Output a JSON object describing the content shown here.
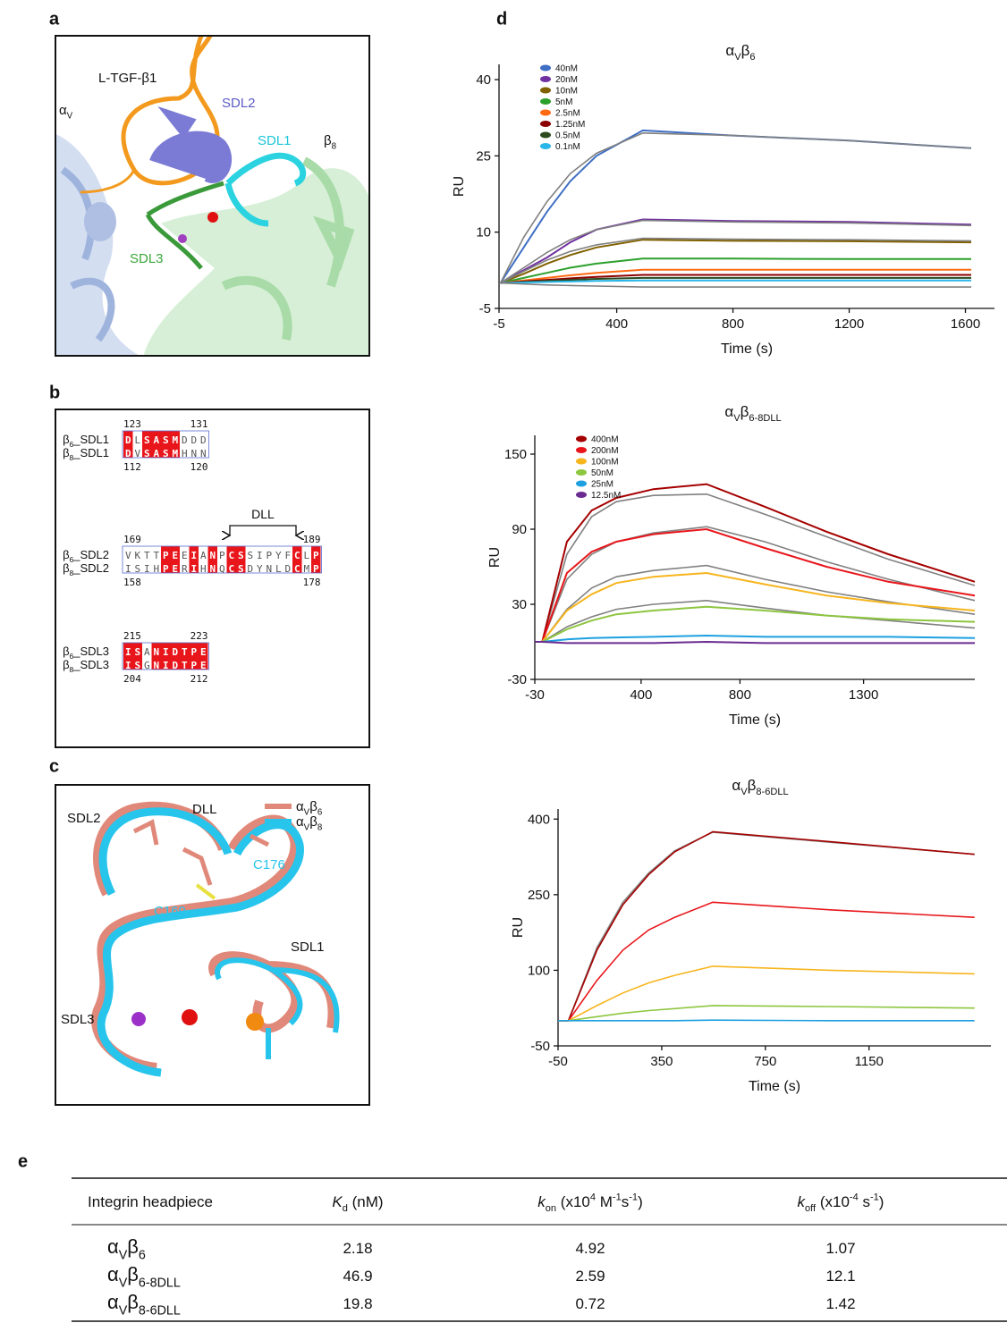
{
  "panel_labels": [
    "a",
    "b",
    "c",
    "d",
    "e"
  ],
  "panel_a": {
    "labels": [
      {
        "parts": [
          {
            "text": "L-TGF-β1"
          }
        ],
        "color": "#111111"
      },
      {
        "parts": [
          {
            "text": "α"
          },
          {
            "text": "V",
            "style": "sub"
          }
        ],
        "color": "#111111"
      },
      {
        "parts": [
          {
            "text": "SDL2"
          }
        ],
        "color": "#5b5bc8"
      },
      {
        "parts": [
          {
            "text": "SDL1"
          }
        ],
        "color": "#1cc6d8"
      },
      {
        "parts": [
          {
            "text": "β"
          },
          {
            "text": "8",
            "style": "sub"
          }
        ],
        "color": "#111111"
      },
      {
        "parts": [
          {
            "text": "SDL3"
          }
        ],
        "color": "#3aa83a"
      }
    ]
  },
  "panel_b": {
    "dll": "DLL",
    "groups": [
      {
        "rows": [
          {
            "name": [
              {
                "text": "β"
              },
              {
                "text": "6",
                "style": "sub"
              },
              {
                "text": "_SDL1"
              }
            ],
            "seq": "DLSASMDDD",
            "start": 123,
            "end": 131
          },
          {
            "name": [
              {
                "text": "β"
              },
              {
                "text": "8",
                "style": "sub"
              },
              {
                "text": "_SDL1"
              }
            ],
            "seq": "DVSASMHNN",
            "start": 112,
            "end": 120
          }
        ]
      },
      {
        "rows": [
          {
            "name": [
              {
                "text": "β"
              },
              {
                "text": "6",
                "style": "sub"
              },
              {
                "text": "_SDL2"
              }
            ],
            "seq": "VKTTPEEIANPCSSIPYFCLP",
            "start": 169,
            "end": 189
          },
          {
            "name": [
              {
                "text": "β"
              },
              {
                "text": "8",
                "style": "sub"
              },
              {
                "text": "_SDL2"
              }
            ],
            "seq": "ISIHPERIHNQCSDYNLDCMP",
            "start": 158,
            "end": 178
          }
        ]
      },
      {
        "rows": [
          {
            "name": [
              {
                "text": "β"
              },
              {
                "text": "6",
                "style": "sub"
              },
              {
                "text": "_SDL3"
              }
            ],
            "seq": "ISANIDTPE",
            "start": 215,
            "end": 223
          },
          {
            "name": [
              {
                "text": "β"
              },
              {
                "text": "8",
                "style": "sub"
              },
              {
                "text": "_SDL3"
              }
            ],
            "seq": "ISGNIDTPE",
            "start": 204,
            "end": 212
          }
        ]
      }
    ]
  },
  "panel_c": {
    "legend": [
      {
        "parts": [
          {
            "text": "α"
          },
          {
            "text": "V",
            "style": "sub"
          },
          {
            "text": "β"
          },
          {
            "text": "6",
            "style": "sub"
          }
        ],
        "color": "#e0897a"
      },
      {
        "parts": [
          {
            "text": "α"
          },
          {
            "text": "V",
            "style": "sub"
          },
          {
            "text": "β"
          },
          {
            "text": "8",
            "style": "sub"
          }
        ],
        "color": "#27c4ec"
      }
    ],
    "labels": [
      {
        "parts": [
          {
            "text": "DLL"
          }
        ],
        "color": "#111111"
      },
      {
        "parts": [
          {
            "text": "SDL2"
          }
        ],
        "color": "#111111"
      },
      {
        "parts": [
          {
            "text": "C169"
          }
        ],
        "color": "#27c4ec"
      },
      {
        "parts": [
          {
            "text": "C176"
          }
        ],
        "color": "#27c4ec"
      },
      {
        "parts": [
          {
            "text": "SDL1"
          }
        ],
        "color": "#111111"
      },
      {
        "parts": [
          {
            "text": "SDL3"
          }
        ],
        "color": "#111111"
      }
    ]
  },
  "chart_data": [
    {
      "type": "line",
      "title": [
        {
          "text": "α"
        },
        {
          "text": "V",
          "style": "sub"
        },
        {
          "text": "β"
        },
        {
          "text": "6",
          "style": "sub"
        }
      ],
      "x_label": "Time (s)",
      "y_label": "RU",
      "xlim": [
        -5,
        1700
      ],
      "xticks": [
        -5,
        400,
        800,
        1200,
        1600
      ],
      "ylim": [
        -5,
        43
      ],
      "yticks": [
        -5,
        10,
        25,
        40
      ],
      "x": [
        0,
        80,
        160,
        240,
        330,
        490,
        800,
        1200,
        1620
      ],
      "series": [
        {
          "name": "40nM",
          "color": "#3f6fc4",
          "values": [
            0,
            7,
            14,
            20,
            25,
            30,
            29,
            28,
            26.5
          ]
        },
        {
          "name": "20nM",
          "color": "#7030a0",
          "values": [
            0,
            2.5,
            5,
            8,
            10.5,
            12.5,
            12.2,
            12,
            11.5
          ]
        },
        {
          "name": "10nM",
          "color": "#806000",
          "values": [
            0,
            1.8,
            3.8,
            5.5,
            7,
            8.5,
            8.3,
            8.2,
            8
          ]
        },
        {
          "name": "5nM",
          "color": "#2ca02c",
          "values": [
            0,
            1,
            2,
            3,
            3.8,
            4.8,
            4.8,
            4.7,
            4.7
          ]
        },
        {
          "name": "2.5nM",
          "color": "#ff6a13",
          "values": [
            0,
            0.5,
            1,
            1.5,
            2,
            2.6,
            2.6,
            2.6,
            2.6
          ]
        },
        {
          "name": "1.25nM",
          "color": "#8b0000",
          "values": [
            0,
            0.3,
            0.6,
            0.9,
            1.2,
            1.6,
            1.6,
            1.6,
            1.6
          ]
        },
        {
          "name": "0.5nM",
          "color": "#2d4a1e",
          "values": [
            0,
            0.2,
            0.4,
            0.6,
            0.8,
            1,
            1,
            1,
            1
          ]
        },
        {
          "name": "0.1nM",
          "color": "#29b6e8",
          "values": [
            0,
            0.1,
            0.2,
            0.3,
            0.4,
            0.5,
            0.5,
            0.5,
            0.5
          ]
        },
        {
          "color": "#808080",
          "values": [
            0,
            9,
            16,
            21.5,
            25.5,
            29.5,
            29,
            28,
            26.5
          ]
        },
        {
          "color": "#808080",
          "values": [
            0,
            3,
            6,
            8.5,
            10.5,
            12.3,
            12,
            11.8,
            11.3
          ]
        },
        {
          "color": "#808080",
          "values": [
            0,
            2.3,
            4.5,
            6.2,
            7.5,
            8.8,
            8.6,
            8.5,
            8.3
          ]
        },
        {
          "color": "#808080",
          "values": [
            0,
            -0.2,
            -0.4,
            -0.5,
            -0.6,
            -0.8,
            -0.8,
            -0.8,
            -0.8
          ]
        }
      ]
    },
    {
      "type": "line",
      "title": [
        {
          "text": "α"
        },
        {
          "text": "V",
          "style": "sub"
        },
        {
          "text": "β"
        },
        {
          "text": "6-8DLL",
          "style": "sub"
        }
      ],
      "x_label": "Time (s)",
      "y_label": "RU",
      "xlim": [
        -30,
        1750
      ],
      "xticks": [
        -30,
        400,
        800,
        1300
      ],
      "ylim": [
        -30,
        165
      ],
      "yticks": [
        -30,
        30,
        90,
        150
      ],
      "x": [
        -30,
        0,
        100,
        200,
        300,
        450,
        665,
        900,
        1150,
        1400,
        1750
      ],
      "series": [
        {
          "color": "#808080",
          "values": [
            0,
            0,
            70,
            100,
            112,
            117,
            118,
            102,
            84,
            66,
            45
          ]
        },
        {
          "color": "#808080",
          "values": [
            0,
            0,
            50,
            70,
            80,
            87,
            92,
            80,
            64,
            50,
            33
          ]
        },
        {
          "color": "#808080",
          "values": [
            0,
            0,
            26,
            43,
            52,
            57,
            61,
            50,
            40,
            32,
            22
          ]
        },
        {
          "color": "#808080",
          "values": [
            0,
            0,
            12,
            20,
            26,
            30,
            33,
            27,
            21,
            17,
            11
          ]
        },
        {
          "name": "400nM",
          "color": "#a50000",
          "values": [
            0,
            0,
            80,
            105,
            115,
            122,
            126,
            108,
            88,
            70,
            48
          ]
        },
        {
          "name": "200nM",
          "color": "#e8161b",
          "values": [
            0,
            0,
            55,
            72,
            80,
            86,
            90,
            75,
            60,
            48,
            37
          ]
        },
        {
          "name": "100nM",
          "color": "#f7b51e",
          "values": [
            0,
            0,
            25,
            38,
            47,
            52,
            55,
            46,
            37,
            31,
            25
          ]
        },
        {
          "name": "50nM",
          "color": "#8dc63f",
          "values": [
            0,
            0,
            10,
            17,
            22,
            25,
            28,
            25,
            21,
            18,
            16
          ]
        },
        {
          "name": "25nM",
          "color": "#1ea0e0",
          "values": [
            0,
            0,
            2,
            3,
            3.5,
            4,
            5,
            4,
            4,
            4,
            3
          ]
        },
        {
          "name": "12.5nM",
          "color": "#6a2c91",
          "values": [
            0,
            0,
            -1,
            -1,
            -1,
            -1,
            0,
            -1,
            -1,
            -1,
            -1
          ]
        }
      ]
    },
    {
      "type": "line",
      "title": [
        {
          "text": "α"
        },
        {
          "text": "V",
          "style": "sub"
        },
        {
          "text": "β"
        },
        {
          "text": "8-6DLL",
          "style": "sub"
        }
      ],
      "x_label": "Time (s)",
      "y_label": "RU",
      "xlim": [
        -50,
        1620
      ],
      "xticks": [
        -50,
        350,
        750,
        1150
      ],
      "ylim": [
        -50,
        420
      ],
      "yticks": [
        -50,
        100,
        250,
        400
      ],
      "x": [
        -50,
        -10,
        100,
        200,
        300,
        400,
        547,
        1000,
        1557
      ],
      "series": [
        {
          "color": "#808080",
          "values": [
            0,
            0,
            145,
            235,
            293,
            337,
            374,
            354,
            330
          ]
        },
        {
          "color": "#a50000",
          "values": [
            0,
            0,
            140,
            230,
            290,
            335,
            375,
            355,
            330
          ]
        },
        {
          "color": "#e8161b",
          "values": [
            0,
            0,
            80,
            140,
            180,
            205,
            235,
            220,
            205
          ]
        },
        {
          "color": "#f7b51e",
          "values": [
            0,
            0,
            30,
            55,
            75,
            90,
            108,
            100,
            93
          ]
        },
        {
          "color": "#8dc63f",
          "values": [
            0,
            0,
            8,
            15,
            20,
            24,
            30,
            28,
            25
          ]
        },
        {
          "color": "#1ea0e0",
          "values": [
            0,
            0,
            0,
            0,
            0,
            0,
            1,
            0,
            0
          ]
        }
      ]
    }
  ],
  "table": {
    "header": [
      [
        {
          "text": "Integrin headpiece"
        }
      ],
      [
        {
          "text": "K",
          "style": "i"
        },
        {
          "text": "d",
          "style": "sub"
        },
        {
          "text": " (nM)"
        }
      ],
      [
        {
          "text": "k",
          "style": "i"
        },
        {
          "text": "on",
          "style": "sub"
        },
        {
          "text": " (x10"
        },
        {
          "text": "4",
          "style": "sup"
        },
        {
          "text": " M"
        },
        {
          "text": "-1",
          "style": "sup"
        },
        {
          "text": "s"
        },
        {
          "text": "-1",
          "style": "sup"
        },
        {
          "text": ")"
        }
      ],
      [
        {
          "text": "k",
          "style": "i"
        },
        {
          "text": "off",
          "style": "sub"
        },
        {
          "text": " (x10"
        },
        {
          "text": "-4",
          "style": "sup"
        },
        {
          "text": " s"
        },
        {
          "text": "-1",
          "style": "sup"
        },
        {
          "text": ")"
        }
      ]
    ],
    "rows": [
      [
        [
          {
            "text": "α"
          },
          {
            "text": "V",
            "style": "sub"
          },
          {
            "text": "β"
          },
          {
            "text": "6",
            "style": "sub"
          }
        ],
        2.18,
        4.92,
        1.07
      ],
      [
        [
          {
            "text": "α"
          },
          {
            "text": "V",
            "style": "sub"
          },
          {
            "text": "β"
          },
          {
            "text": "6-8DLL",
            "style": "sub"
          }
        ],
        46.9,
        2.59,
        12.1
      ],
      [
        [
          {
            "text": "α"
          },
          {
            "text": "V",
            "style": "sub"
          },
          {
            "text": "β"
          },
          {
            "text": "8-6DLL",
            "style": "sub"
          }
        ],
        19.8,
        0.72,
        1.42
      ]
    ]
  }
}
